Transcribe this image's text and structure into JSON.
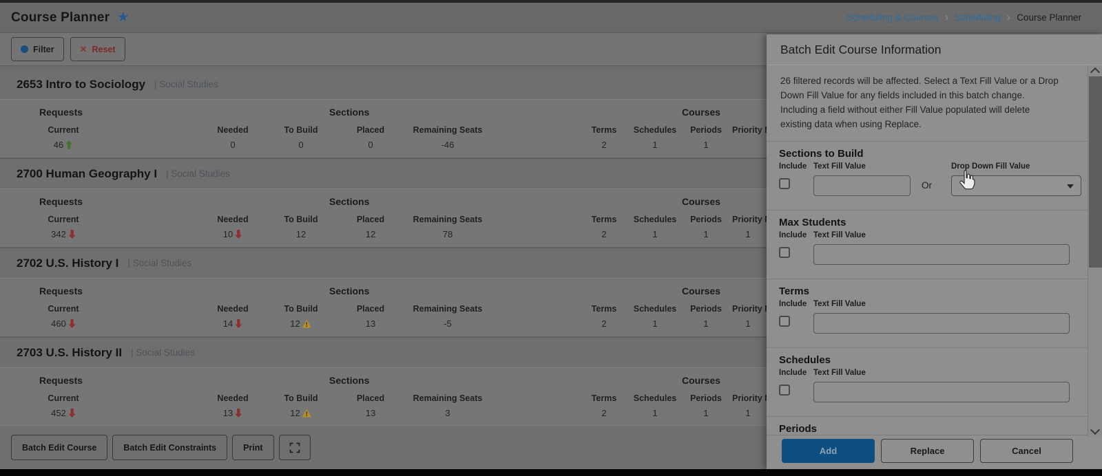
{
  "header": {
    "title": "Course Planner",
    "breadcrumbs": [
      "Scheduling & Courses",
      "Scheduling",
      "Course Planner"
    ]
  },
  "toolbar": {
    "filter_label": "Filter",
    "reset_label": "Reset",
    "reset_icon": "✕"
  },
  "icons": {
    "star": "★"
  },
  "table": {
    "groups": [
      {
        "label": "Requests"
      },
      {
        "label": "Sections"
      },
      {
        "label": "Courses"
      }
    ],
    "columns": [
      {
        "key": "current",
        "label": "Current"
      },
      {
        "key": "needed",
        "label": "Needed"
      },
      {
        "key": "to_build",
        "label": "To Build"
      },
      {
        "key": "placed",
        "label": "Placed"
      },
      {
        "key": "remaining_seats",
        "label": "Remaining Seats"
      },
      {
        "key": "terms",
        "label": "Terms"
      },
      {
        "key": "schedules",
        "label": "Schedules"
      },
      {
        "key": "periods",
        "label": "Periods"
      },
      {
        "key": "priority",
        "label": "Priority M"
      }
    ]
  },
  "courses": [
    {
      "number": "2653",
      "name": "Intro to Sociology",
      "department": "| Social Studies",
      "stats": {
        "current": "46",
        "current_arrow": "up",
        "needed": "0",
        "to_build": "0",
        "placed": "0",
        "remaining_seats": "-46",
        "terms": "2",
        "schedules": "1",
        "periods": "1",
        "priority": ""
      }
    },
    {
      "number": "2700",
      "name": "Human Geography I",
      "department": "| Social Studies",
      "stats": {
        "current": "342",
        "current_arrow": "down",
        "needed": "10",
        "needed_arrow": "down",
        "to_build": "12",
        "placed": "12",
        "remaining_seats": "78",
        "terms": "2",
        "schedules": "1",
        "periods": "1",
        "priority": "1"
      }
    },
    {
      "number": "2702",
      "name": "U.S. History I",
      "department": "| Social Studies",
      "stats": {
        "current": "460",
        "current_arrow": "down",
        "needed": "14",
        "needed_arrow": "down",
        "to_build": "12",
        "to_build_warning": true,
        "placed": "13",
        "remaining_seats": "-5",
        "terms": "2",
        "schedules": "1",
        "periods": "1",
        "priority": "1"
      }
    },
    {
      "number": "2703",
      "name": "U.S. History II",
      "department": "| Social Studies",
      "stats": {
        "current": "452",
        "current_arrow": "down",
        "needed": "13",
        "needed_arrow": "down",
        "to_build": "12",
        "to_build_warning": true,
        "placed": "13",
        "remaining_seats": "3",
        "terms": "2",
        "schedules": "1",
        "periods": "1",
        "priority": "1"
      }
    }
  ],
  "footer": {
    "buttons": [
      "Batch Edit Course",
      "Batch Edit Constraints",
      "Print"
    ]
  },
  "panel": {
    "title": "Batch Edit Course Information",
    "description": "26 filtered records will be affected. Select a Text Fill Value or a Drop Down Fill Value for any fields included in this batch change. Including a field without either Fill Value populated will delete existing data when using Replace.",
    "include_label": "Include",
    "text_fill_label": "Text Fill Value",
    "or_label": "Or",
    "drop_down_label": "Drop Down Fill Value",
    "sections": [
      {
        "heading": "Sections to Build",
        "has_dropdown": true,
        "text_value": "",
        "dropdown_value": "",
        "include_checked": false,
        "heading_only": false
      },
      {
        "heading": "Max Students",
        "has_dropdown": false,
        "text_value": "",
        "include_checked": false,
        "heading_only": false
      },
      {
        "heading": "Terms",
        "has_dropdown": false,
        "text_value": "",
        "include_checked": false,
        "heading_only": false
      },
      {
        "heading": "Schedules",
        "has_dropdown": false,
        "text_value": "",
        "include_checked": false,
        "heading_only": false
      },
      {
        "heading": "Periods",
        "has_dropdown": false,
        "heading_only": true
      }
    ],
    "buttons": {
      "add": "Add",
      "replace": "Replace",
      "cancel": "Cancel"
    }
  },
  "colors": {
    "accent_blue": "#24598f",
    "link_blue": "#2e6d9c",
    "add_button_blue": "#0d4f83",
    "arrow_up_green": "#47722c",
    "arrow_down_red": "#8c2f2f",
    "warning_amber": "#b58f2e"
  }
}
